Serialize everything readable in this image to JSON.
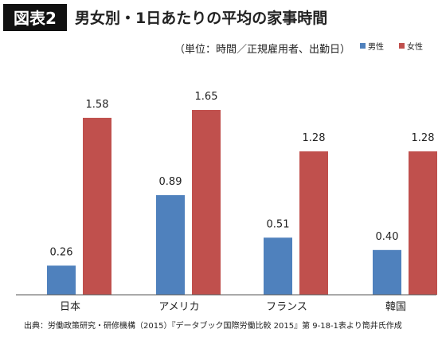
{
  "figure_label": "図表2",
  "chart_data": {
    "type": "bar",
    "title": "男女別・1日あたりの平均の家事時間",
    "subtitle": "（単位：時間／正規雇用者、出勤日）",
    "categories": [
      "日本",
      "アメリカ",
      "フランス",
      "韓国"
    ],
    "series": [
      {
        "name": "男性",
        "values": [
          0.26,
          0.89,
          0.51,
          0.4
        ],
        "color": "#4f81bd"
      },
      {
        "name": "女性",
        "values": [
          1.58,
          1.65,
          1.28,
          1.28
        ],
        "color": "#c0504d"
      }
    ],
    "value_labels": [
      [
        "0.26",
        "0.89",
        "0.51",
        "0.40"
      ],
      [
        "1.58",
        "1.65",
        "1.28",
        "1.28"
      ]
    ],
    "ylim": [
      0,
      1.75
    ],
    "grid": false,
    "legend": "top-right",
    "xlabel": "",
    "ylabel": ""
  },
  "source": "出典：労働政策研究・研修機構（2015）『データブック国際労働比較 2015』第 9-18-1表より筒井氏作成",
  "colors": {
    "badge_background": "#111111",
    "badge_text": "#ffffff",
    "axis": "#555555",
    "text": "#222222"
  }
}
